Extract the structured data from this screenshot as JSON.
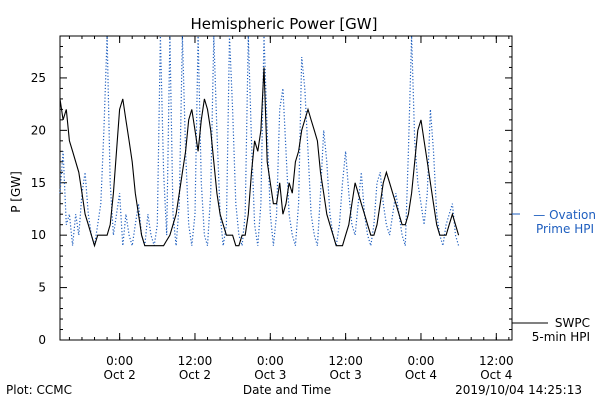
{
  "chart_data": {
    "type": "line",
    "title": "Hemispheric Power [GW]",
    "xlabel": "Date and Time",
    "ylabel": "P [GW]",
    "ylim": [
      0,
      29
    ],
    "xlim_hours": [
      0,
      72
    ],
    "grid": false,
    "legend_placement": "right",
    "y_ticks": [
      0,
      5,
      10,
      15,
      20,
      25
    ],
    "x_ticks": [
      {
        "hour": 9.5,
        "time": "0:00",
        "date": "Oct 2"
      },
      {
        "hour": 21.5,
        "time": "12:00",
        "date": "Oct 2"
      },
      {
        "hour": 33.5,
        "time": "0:00",
        "date": "Oct 3"
      },
      {
        "hour": 45.5,
        "time": "12:00",
        "date": "Oct 3"
      },
      {
        "hour": 57.5,
        "time": "0:00",
        "date": "Oct 4"
      },
      {
        "hour": 69.5,
        "time": "12:00",
        "date": "Oct 4"
      }
    ],
    "series": [
      {
        "name": "SWPC 5-min HPI",
        "style": "solid",
        "color": "#000000",
        "points": [
          [
            0,
            23
          ],
          [
            0.5,
            21
          ],
          [
            1,
            22
          ],
          [
            1.5,
            19
          ],
          [
            2,
            18
          ],
          [
            2.5,
            17
          ],
          [
            3,
            16
          ],
          [
            3.5,
            14
          ],
          [
            4,
            12
          ],
          [
            4.5,
            11
          ],
          [
            5,
            10
          ],
          [
            5.5,
            9
          ],
          [
            6,
            10
          ],
          [
            6.5,
            10
          ],
          [
            7,
            10
          ],
          [
            7.5,
            10
          ],
          [
            8,
            11
          ],
          [
            8.5,
            14
          ],
          [
            9,
            18
          ],
          [
            9.5,
            22
          ],
          [
            10,
            23
          ],
          [
            10.5,
            21
          ],
          [
            11,
            19
          ],
          [
            11.5,
            17
          ],
          [
            12,
            14
          ],
          [
            12.5,
            12
          ],
          [
            13,
            10
          ],
          [
            13.5,
            9
          ],
          [
            14,
            9
          ],
          [
            14.5,
            9
          ],
          [
            15,
            9
          ],
          [
            15.5,
            9
          ],
          [
            16,
            9
          ],
          [
            16.5,
            9
          ],
          [
            17,
            9.5
          ],
          [
            17.5,
            10
          ],
          [
            18,
            11
          ],
          [
            18.5,
            12
          ],
          [
            19,
            14
          ],
          [
            19.5,
            16
          ],
          [
            20,
            18
          ],
          [
            20.5,
            21
          ],
          [
            21,
            22
          ],
          [
            21.5,
            20
          ],
          [
            22,
            18
          ],
          [
            22.5,
            21
          ],
          [
            23,
            23
          ],
          [
            23.5,
            22
          ],
          [
            24,
            20
          ],
          [
            24.5,
            17
          ],
          [
            25,
            14
          ],
          [
            25.5,
            12
          ],
          [
            26,
            11
          ],
          [
            26.5,
            10
          ],
          [
            27,
            10
          ],
          [
            27.5,
            10
          ],
          [
            28,
            9
          ],
          [
            28.5,
            9
          ],
          [
            29,
            10
          ],
          [
            29.5,
            10
          ],
          [
            30,
            12
          ],
          [
            30.5,
            16
          ],
          [
            31,
            19
          ],
          [
            31.5,
            18
          ],
          [
            32,
            20
          ],
          [
            32.5,
            26
          ],
          [
            33,
            17
          ],
          [
            33.5,
            15
          ],
          [
            34,
            13
          ],
          [
            34.5,
            13
          ],
          [
            35,
            15
          ],
          [
            35.5,
            12
          ],
          [
            36,
            13
          ],
          [
            36.5,
            15
          ],
          [
            37,
            14
          ],
          [
            37.5,
            17
          ],
          [
            38,
            18
          ],
          [
            38.5,
            20
          ],
          [
            39,
            21
          ],
          [
            39.5,
            22
          ],
          [
            40,
            21
          ],
          [
            40.5,
            20
          ],
          [
            41,
            19
          ],
          [
            41.5,
            16
          ],
          [
            42,
            14
          ],
          [
            42.5,
            12
          ],
          [
            43,
            11
          ],
          [
            43.5,
            10
          ],
          [
            44,
            9
          ],
          [
            44.5,
            9
          ],
          [
            45,
            9
          ],
          [
            45.5,
            10
          ],
          [
            46,
            11
          ],
          [
            46.5,
            13
          ],
          [
            47,
            15
          ],
          [
            47.5,
            14
          ],
          [
            48,
            13
          ],
          [
            48.5,
            12
          ],
          [
            49,
            11
          ],
          [
            49.5,
            10
          ],
          [
            50,
            10
          ],
          [
            50.5,
            11
          ],
          [
            51,
            13
          ],
          [
            51.5,
            15
          ],
          [
            52,
            16
          ],
          [
            52.5,
            15
          ],
          [
            53,
            14
          ],
          [
            53.5,
            13
          ],
          [
            54,
            12
          ],
          [
            54.5,
            11
          ],
          [
            55,
            11
          ],
          [
            55.5,
            12
          ],
          [
            56,
            14
          ],
          [
            56.5,
            17
          ],
          [
            57,
            20
          ],
          [
            57.5,
            21
          ],
          [
            58,
            19
          ],
          [
            58.5,
            17
          ],
          [
            59,
            15
          ],
          [
            59.5,
            13
          ],
          [
            60,
            11
          ],
          [
            60.5,
            10
          ],
          [
            61,
            10
          ],
          [
            61.5,
            10
          ],
          [
            62,
            11
          ],
          [
            62.5,
            12
          ],
          [
            63,
            11
          ],
          [
            63.5,
            10
          ]
        ]
      },
      {
        "name": "Ovation Prime HPI",
        "style": "dotted",
        "color": "#1f5fbf",
        "points": [
          [
            0,
            14
          ],
          [
            0.5,
            18
          ],
          [
            1,
            11
          ],
          [
            1.5,
            12
          ],
          [
            2,
            9
          ],
          [
            2.5,
            12
          ],
          [
            3,
            10
          ],
          [
            3.5,
            14
          ],
          [
            4,
            16
          ],
          [
            4.5,
            12
          ],
          [
            5,
            10
          ],
          [
            5.5,
            9
          ],
          [
            6,
            11
          ],
          [
            6.5,
            13
          ],
          [
            7,
            20
          ],
          [
            7.5,
            29
          ],
          [
            8,
            15
          ],
          [
            8.5,
            10
          ],
          [
            9,
            12
          ],
          [
            9.5,
            14
          ],
          [
            10,
            9
          ],
          [
            10.5,
            12
          ],
          [
            11,
            10
          ],
          [
            11.5,
            9
          ],
          [
            12,
            11
          ],
          [
            12.5,
            13
          ],
          [
            13,
            10
          ],
          [
            13.5,
            9
          ],
          [
            14,
            12
          ],
          [
            14.5,
            10
          ],
          [
            15,
            9
          ],
          [
            15.5,
            11
          ],
          [
            16,
            29
          ],
          [
            16.5,
            16
          ],
          [
            17,
            10
          ],
          [
            17.5,
            29
          ],
          [
            18,
            12
          ],
          [
            18.5,
            9
          ],
          [
            19,
            13
          ],
          [
            19.5,
            29
          ],
          [
            20,
            18
          ],
          [
            20.5,
            11
          ],
          [
            21,
            9
          ],
          [
            21.5,
            12
          ],
          [
            22,
            29
          ],
          [
            22.5,
            15
          ],
          [
            23,
            10
          ],
          [
            23.5,
            9
          ],
          [
            24,
            14
          ],
          [
            24.5,
            29
          ],
          [
            25,
            20
          ],
          [
            25.5,
            12
          ],
          [
            26,
            9
          ],
          [
            26.5,
            11
          ],
          [
            27,
            29
          ],
          [
            27.5,
            22
          ],
          [
            28,
            13
          ],
          [
            28.5,
            10
          ],
          [
            29,
            9
          ],
          [
            29.5,
            12
          ],
          [
            30,
            29
          ],
          [
            30.5,
            19
          ],
          [
            31,
            11
          ],
          [
            31.5,
            9
          ],
          [
            32,
            13
          ],
          [
            32.5,
            29
          ],
          [
            33,
            20
          ],
          [
            33.5,
            12
          ],
          [
            34,
            9
          ],
          [
            34.5,
            12
          ],
          [
            35,
            22
          ],
          [
            35.5,
            24
          ],
          [
            36,
            18
          ],
          [
            36.5,
            12
          ],
          [
            37,
            10
          ],
          [
            37.5,
            9
          ],
          [
            38,
            13
          ],
          [
            38.5,
            27
          ],
          [
            39,
            24
          ],
          [
            39.5,
            18
          ],
          [
            40,
            12
          ],
          [
            40.5,
            10
          ],
          [
            41,
            9
          ],
          [
            41.5,
            14
          ],
          [
            42,
            20
          ],
          [
            42.5,
            17
          ],
          [
            43,
            12
          ],
          [
            43.5,
            10
          ],
          [
            44,
            9
          ],
          [
            44.5,
            11
          ],
          [
            45,
            15
          ],
          [
            45.5,
            18
          ],
          [
            46,
            14
          ],
          [
            46.5,
            11
          ],
          [
            47,
            10
          ],
          [
            47.5,
            13
          ],
          [
            48,
            16
          ],
          [
            48.5,
            12
          ],
          [
            49,
            10
          ],
          [
            49.5,
            9
          ],
          [
            50,
            11
          ],
          [
            50.5,
            15
          ],
          [
            51,
            16
          ],
          [
            51.5,
            13
          ],
          [
            52,
            11
          ],
          [
            52.5,
            10
          ],
          [
            53,
            12
          ],
          [
            53.5,
            14
          ],
          [
            54,
            12
          ],
          [
            54.5,
            10
          ],
          [
            55,
            9
          ],
          [
            55.5,
            18
          ],
          [
            56,
            29
          ],
          [
            56.5,
            19
          ],
          [
            57,
            15
          ],
          [
            57.5,
            13
          ],
          [
            58,
            11
          ],
          [
            58.5,
            14
          ],
          [
            59,
            22
          ],
          [
            59.5,
            18
          ],
          [
            60,
            12
          ],
          [
            60.5,
            10
          ],
          [
            61,
            9
          ],
          [
            61.5,
            11
          ],
          [
            62,
            12
          ],
          [
            62.5,
            13
          ],
          [
            63,
            10
          ],
          [
            63.5,
            9
          ]
        ]
      }
    ],
    "legend": [
      {
        "series": "Ovation Prime HPI",
        "lines": [
          "— Ovation",
          "Prime HPI"
        ]
      },
      {
        "series": "SWPC 5-min HPI",
        "lines": [
          "SWPC",
          "5-min HPI"
        ]
      }
    ],
    "footer_left": "Plot: CCMC",
    "footer_right": "2019/10/04 14:25:13"
  }
}
